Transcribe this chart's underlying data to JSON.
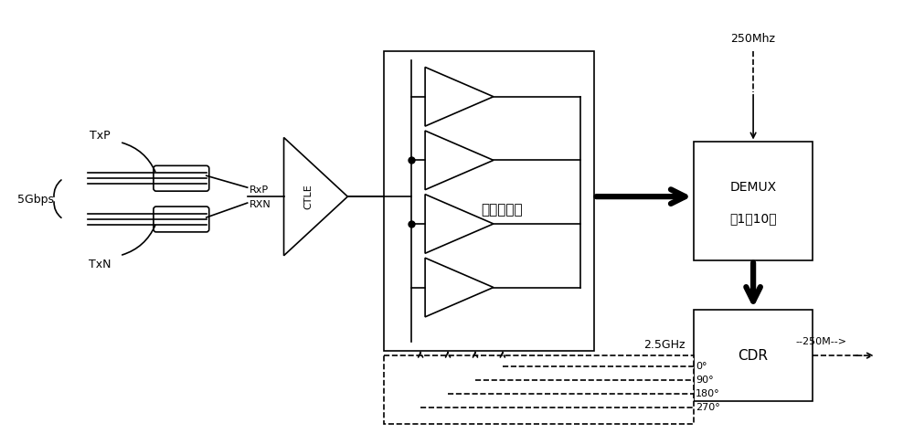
{
  "bg_color": "#ffffff",
  "line_color": "#000000",
  "fig_width": 10.0,
  "fig_height": 4.75,
  "dpi": 100,
  "lw": 1.2,
  "lw_thick": 4.5,
  "labels": {
    "TxP": "TxP",
    "TxN": "TxN",
    "5Gbps": "5Gbps",
    "RxP": "RxP",
    "RxN": "RXN",
    "CTLE": "CTLE",
    "quad_comp": "四相比较器",
    "DEMUX1": "DEMUX",
    "DEMUX2": "（1：10）",
    "CDR": "CDR",
    "freq_250": "250Mhz",
    "freq_25": "2.5GHz",
    "deg0": "0°",
    "deg90": "90°",
    "deg180": "180°",
    "deg270": "270°",
    "out250": "--250M-->"
  }
}
